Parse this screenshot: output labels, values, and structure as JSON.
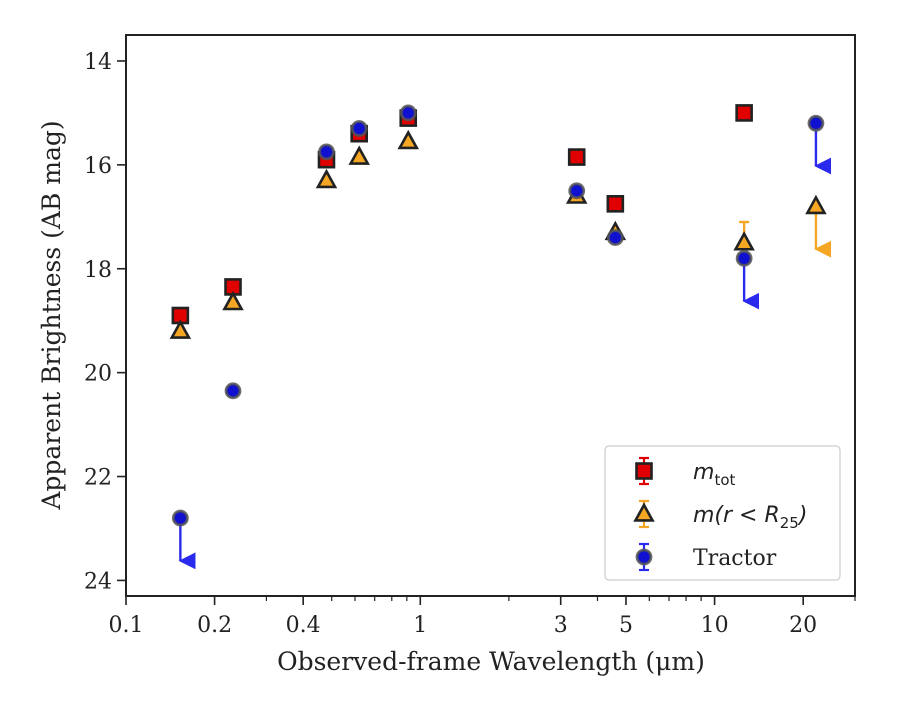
{
  "chart_data": {
    "type": "scatter",
    "xlabel": "Observed-frame Wavelength (μm)",
    "ylabel": "Apparent Brightness (AB mag)",
    "xscale": "log",
    "xlim": [
      0.1,
      30
    ],
    "ylim": [
      24.3,
      13.5
    ],
    "y_inverted": true,
    "xticks": [
      {
        "value": 0.1,
        "label": "0.1"
      },
      {
        "value": 0.2,
        "label": "0.2"
      },
      {
        "value": 0.4,
        "label": "0.4"
      },
      {
        "value": 1,
        "label": "1"
      },
      {
        "value": 3,
        "label": "3"
      },
      {
        "value": 5,
        "label": "5"
      },
      {
        "value": 10,
        "label": "10"
      },
      {
        "value": 20,
        "label": "20"
      }
    ],
    "yticks": [
      {
        "value": 14,
        "label": "14"
      },
      {
        "value": 16,
        "label": "16"
      },
      {
        "value": 18,
        "label": "18"
      },
      {
        "value": 20,
        "label": "20"
      },
      {
        "value": 22,
        "label": "22"
      },
      {
        "value": 24,
        "label": "24"
      }
    ],
    "legend_position": "lower-right",
    "grid": false,
    "series": [
      {
        "name": "m_tot",
        "legend_main": "m",
        "legend_sub": "tot",
        "legend_tail": "",
        "marker": "square",
        "color": "#e00000",
        "edge_color": "#222222",
        "errorbar_color": "#e00000",
        "points": [
          {
            "x": 0.153,
            "y": 18.9
          },
          {
            "x": 0.231,
            "y": 18.35
          },
          {
            "x": 0.48,
            "y": 15.9
          },
          {
            "x": 0.62,
            "y": 15.4
          },
          {
            "x": 0.91,
            "y": 15.1
          },
          {
            "x": 3.4,
            "y": 15.85
          },
          {
            "x": 4.6,
            "y": 16.75
          },
          {
            "x": 12.6,
            "y": 15.0
          }
        ]
      },
      {
        "name": "m(r < R_25)",
        "legend_main": "m(r < R",
        "legend_sub": "25",
        "legend_tail": ")",
        "marker": "triangle",
        "color": "#f5a623",
        "edge_color": "#222222",
        "errorbar_color": "#f5a623",
        "points": [
          {
            "x": 0.153,
            "y": 19.2
          },
          {
            "x": 0.231,
            "y": 18.65
          },
          {
            "x": 0.48,
            "y": 16.3
          },
          {
            "x": 0.62,
            "y": 15.85
          },
          {
            "x": 0.91,
            "y": 15.55
          },
          {
            "x": 3.4,
            "y": 16.6
          },
          {
            "x": 4.6,
            "y": 17.3
          },
          {
            "x": 12.6,
            "y": 17.5,
            "err_low": 17.1
          },
          {
            "x": 22.1,
            "y": 16.8,
            "upper_limit_to": 17.7
          }
        ]
      },
      {
        "name": "Tractor",
        "legend_main": "Tractor",
        "legend_sub": "",
        "legend_tail": "",
        "marker": "circle",
        "color": "#1010d0",
        "edge_color": "#555555",
        "errorbar_color": "#2a2aee",
        "points": [
          {
            "x": 0.153,
            "y": 22.8,
            "upper_limit_to": 23.7
          },
          {
            "x": 0.231,
            "y": 20.35
          },
          {
            "x": 0.48,
            "y": 15.75
          },
          {
            "x": 0.62,
            "y": 15.3
          },
          {
            "x": 0.91,
            "y": 15.0
          },
          {
            "x": 3.4,
            "y": 16.5
          },
          {
            "x": 4.6,
            "y": 17.4
          },
          {
            "x": 12.6,
            "y": 17.8,
            "upper_limit_to": 18.7
          },
          {
            "x": 22.1,
            "y": 15.2,
            "upper_limit_to": 16.1
          }
        ]
      }
    ]
  }
}
